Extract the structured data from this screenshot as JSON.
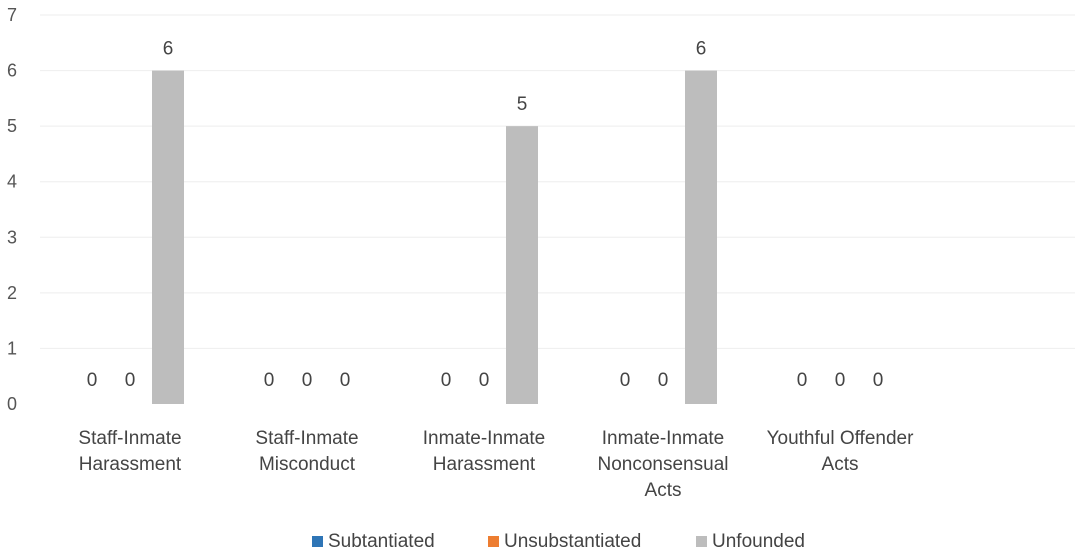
{
  "chart_data": {
    "type": "bar",
    "title": "",
    "xlabel": "",
    "ylabel": "",
    "ylim": [
      0,
      7
    ],
    "yticks": [
      0,
      1,
      2,
      3,
      4,
      5,
      6,
      7
    ],
    "grid": true,
    "legend_position": "bottom",
    "categories": [
      [
        "Staff-Inmate",
        "Harassment"
      ],
      [
        "Staff-Inmate",
        "Misconduct"
      ],
      [
        "Inmate-Inmate",
        "Harassment"
      ],
      [
        "Inmate-Inmate",
        "Nonconsensual",
        "Acts"
      ],
      [
        "Youthful Offender",
        "Acts"
      ]
    ],
    "series": [
      {
        "name": "Subtantiated",
        "color": "#2E75B6",
        "values": [
          0,
          0,
          0,
          0,
          0
        ]
      },
      {
        "name": "Unsubstantiated",
        "color": "#ED7D31",
        "values": [
          0,
          0,
          0,
          0,
          0
        ]
      },
      {
        "name": "Unfounded",
        "color": "#BDBDBD",
        "values": [
          6,
          0,
          5,
          6,
          0
        ]
      }
    ]
  }
}
